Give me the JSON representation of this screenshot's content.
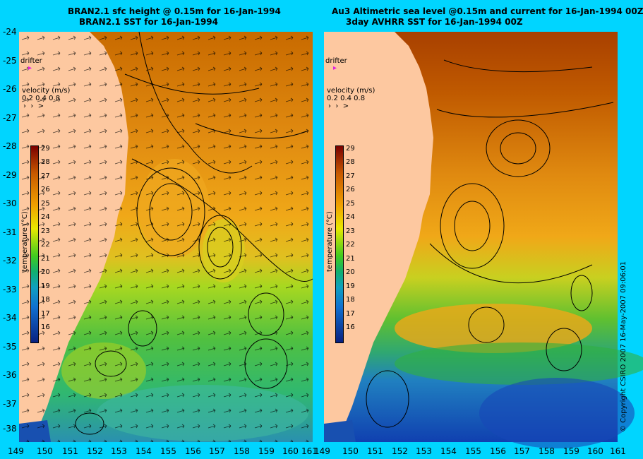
{
  "left": {
    "title_line1": "BRAN2.1 sfc height @ 0.15m for 16-Jan-1994",
    "title_line2": "BRAN2.1 SST for 16-Jan-1994"
  },
  "right": {
    "title_line1": "Au3 Altimetric sea level  @0.15m and current for 16-Jan-1994 00Z",
    "title_line2": "3day AVHRR SST for 16-Jan-1994 00Z"
  },
  "drifter_label": "drifter",
  "velocity_legend": {
    "title": "velocity (m/s)",
    "values": "0.2 0.4 0.8"
  },
  "colorbar": {
    "label": "temperature (°C)",
    "ticks": [
      "29",
      "28",
      "27",
      "26",
      "25",
      "24",
      "23",
      "22",
      "21",
      "20",
      "19",
      "18",
      "17",
      "16"
    ],
    "colors": [
      "#7a0000",
      "#a52a00",
      "#c85a00",
      "#e08000",
      "#f0a000",
      "#f5c800",
      "#e8e800",
      "#a6e600",
      "#40cc20",
      "#10b070",
      "#10a0c0",
      "#1070d0",
      "#1040b0",
      "#082080"
    ]
  },
  "y_ticks": [
    "-24",
    "-25",
    "-26",
    "-27",
    "-28",
    "-29",
    "-30",
    "-31",
    "-32",
    "-33",
    "-34",
    "-35",
    "-36",
    "-37",
    "-38"
  ],
  "x_ticks": [
    "149",
    "150",
    "151",
    "152",
    "153",
    "154",
    "155",
    "156",
    "157",
    "158",
    "159",
    "160",
    "161"
  ],
  "copyright": "© Copyright CSIRO 2007  16-May-2007 09:06:01"
}
